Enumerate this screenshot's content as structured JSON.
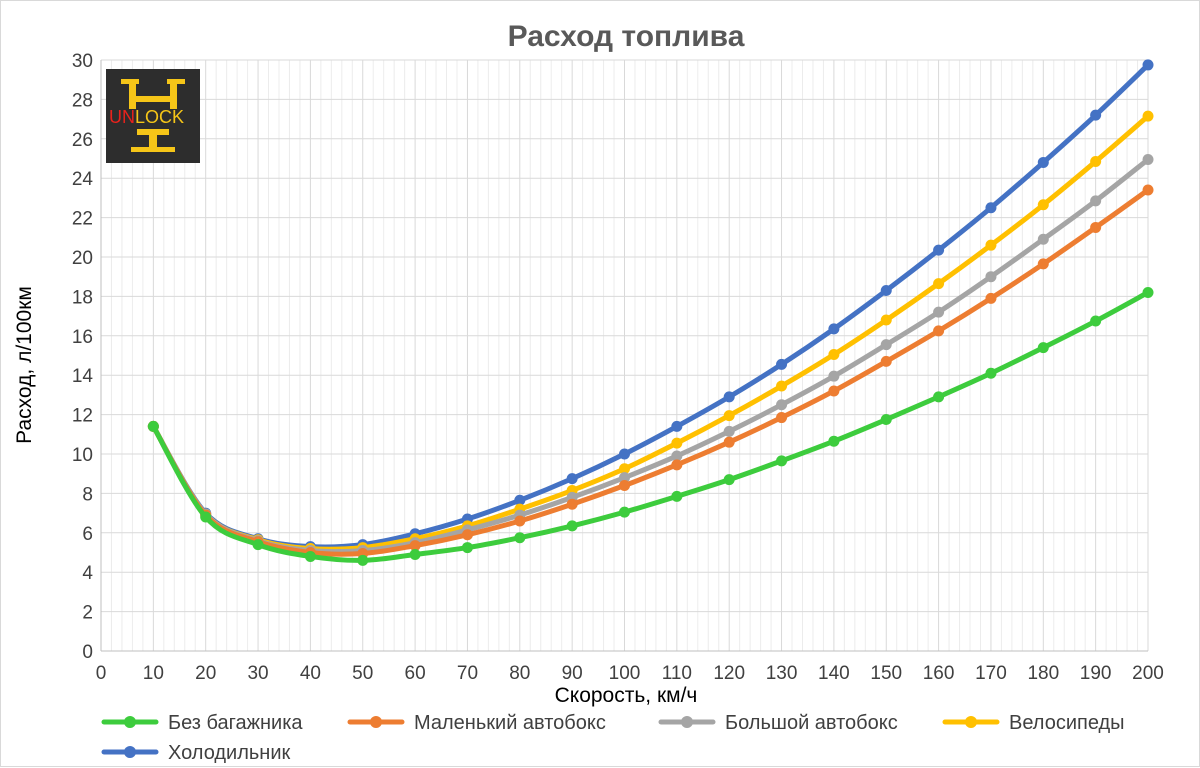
{
  "chart_data": {
    "type": "line",
    "title": "Расход топлива",
    "xlabel": "Скорость, км/ч",
    "ylabel": "Расход, л/100км",
    "xlim": [
      0,
      200
    ],
    "ylim": [
      0,
      30
    ],
    "x_ticks": [
      0,
      10,
      20,
      30,
      40,
      50,
      60,
      70,
      80,
      90,
      100,
      110,
      120,
      130,
      140,
      150,
      160,
      170,
      180,
      190,
      200
    ],
    "y_ticks": [
      0,
      2,
      4,
      6,
      8,
      10,
      12,
      14,
      16,
      18,
      20,
      22,
      24,
      26,
      28,
      30
    ],
    "grid": true,
    "legend_position": "bottom",
    "x": [
      10,
      20,
      30,
      40,
      50,
      60,
      70,
      80,
      90,
      100,
      110,
      120,
      130,
      140,
      150,
      160,
      170,
      180,
      190,
      200
    ],
    "series": [
      {
        "name": "Без багажника",
        "color": "#3dcc3d",
        "values": [
          11.4,
          6.8,
          5.4,
          4.8,
          4.6,
          4.9,
          5.25,
          5.75,
          6.35,
          7.05,
          7.85,
          8.7,
          9.65,
          10.65,
          11.75,
          12.9,
          14.1,
          15.4,
          16.75,
          18.2
        ]
      },
      {
        "name": "Маленький автобокс",
        "color": "#ed7d31",
        "values": [
          11.4,
          6.9,
          5.55,
          5.0,
          4.95,
          5.35,
          5.9,
          6.6,
          7.45,
          8.4,
          9.45,
          10.6,
          11.85,
          13.2,
          14.7,
          16.25,
          17.9,
          19.65,
          21.5,
          23.4
        ]
      },
      {
        "name": "Большой автобокс",
        "color": "#a5a5a5",
        "values": [
          11.4,
          6.95,
          5.6,
          5.1,
          5.1,
          5.5,
          6.15,
          6.9,
          7.8,
          8.8,
          9.9,
          11.15,
          12.5,
          13.95,
          15.55,
          17.2,
          19.0,
          20.9,
          22.85,
          24.95
        ]
      },
      {
        "name": "Велосипеды",
        "color": "#ffc000",
        "values": [
          11.4,
          6.95,
          5.65,
          5.2,
          5.25,
          5.7,
          6.35,
          7.2,
          8.15,
          9.25,
          10.55,
          11.95,
          13.45,
          15.05,
          16.8,
          18.65,
          20.6,
          22.65,
          24.85,
          27.15
        ]
      },
      {
        "name": "Холодильник",
        "color": "#4472c4",
        "values": [
          11.4,
          7.0,
          5.7,
          5.3,
          5.4,
          5.95,
          6.7,
          7.65,
          8.75,
          10.0,
          11.4,
          12.9,
          14.55,
          16.35,
          18.3,
          20.35,
          22.5,
          24.8,
          27.2,
          29.75
        ]
      }
    ]
  },
  "logo": {
    "text_red": "UN",
    "text_yellow": "LOCK",
    "background": "#2d2d2d",
    "accent_yellow": "#f5c518",
    "accent_red": "#e8221c"
  }
}
